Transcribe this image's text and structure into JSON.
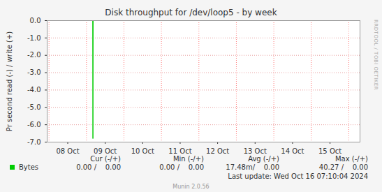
{
  "chart_data": {
    "type": "line",
    "title": "Disk throughput for /dev/loop5 - by week",
    "y_label": "Pr second read (-) / write (+)",
    "x": [
      7.95,
      9.165,
      9.172,
      9.179,
      16.3
    ],
    "series": [
      {
        "name": "Bytes",
        "color": "#00cc00",
        "values": [
          0,
          0,
          -6.8,
          0,
          0
        ]
      }
    ],
    "xlim": [
      7.95,
      16.3
    ],
    "xticks": [
      {
        "value": 8.5,
        "label": "08 Oct"
      },
      {
        "value": 9.5,
        "label": "09 Oct"
      },
      {
        "value": 10.5,
        "label": "10 Oct"
      },
      {
        "value": 11.5,
        "label": "11 Oct"
      },
      {
        "value": 12.5,
        "label": "12 Oct"
      },
      {
        "value": 13.5,
        "label": "13 Oct"
      },
      {
        "value": 14.5,
        "label": "14 Oct"
      },
      {
        "value": 15.5,
        "label": "15 Oct"
      }
    ],
    "ylim": [
      -7,
      0
    ],
    "yticks": [
      {
        "value": 0,
        "label": "0.0"
      },
      {
        "value": -1,
        "label": "-1.0"
      },
      {
        "value": -2,
        "label": "-2.0"
      },
      {
        "value": -3,
        "label": "-3.0"
      },
      {
        "value": -4,
        "label": "-4.0"
      },
      {
        "value": -5,
        "label": "-5.0"
      },
      {
        "value": -6,
        "label": "-6.0"
      },
      {
        "value": -7,
        "label": "-7.0"
      }
    ],
    "grid": true,
    "legend_table": {
      "columns": [
        "Cur (-/+)",
        "Min (-/+)",
        "Avg (-/+)",
        "Max (-/+)"
      ],
      "rows": [
        {
          "name": "Bytes",
          "cells": [
            "0.00 /    0.00",
            "0.00 /    0.00",
            "17.48m/    0.00",
            "40.27 /    0.00"
          ]
        }
      ]
    },
    "last_update": "Last update: Wed Oct 16 07:10:04 2024",
    "footer": "Munin 2.0.56",
    "side_text": "RRDTOOL / TOBI OETIKER"
  }
}
